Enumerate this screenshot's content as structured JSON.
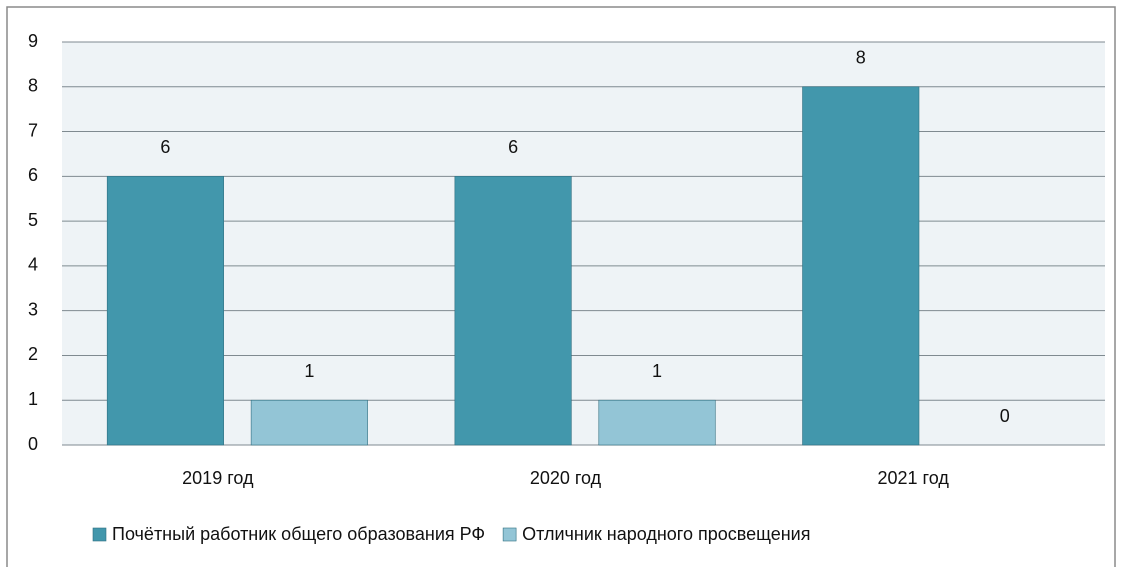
{
  "chart_data": {
    "type": "bar",
    "categories": [
      "2019 год",
      "2020 год",
      "2021 год"
    ],
    "series": [
      {
        "name": "Почётный работник общего образования РФ",
        "color": "#4297ac",
        "values": [
          6,
          6,
          8
        ]
      },
      {
        "name": "Отличник народного просвещения",
        "color": "#93c5d6",
        "values": [
          1,
          1,
          0
        ]
      }
    ],
    "ylim": [
      0,
      9
    ],
    "yticks": [
      0,
      1,
      2,
      3,
      4,
      5,
      6,
      7,
      8,
      9
    ],
    "grid": true,
    "legend": "bottom"
  }
}
